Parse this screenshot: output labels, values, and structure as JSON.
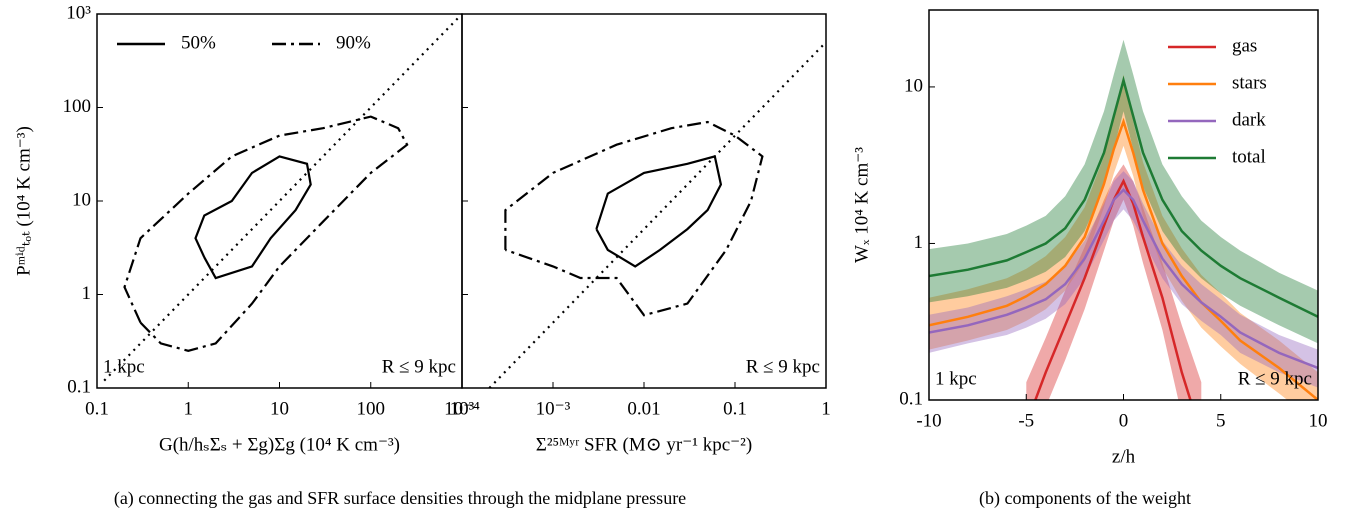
{
  "chart_data": [
    {
      "type": "contour",
      "ylabel": "Pᵐⁱᵈₜₒₜ (10⁴ K cm⁻³)",
      "xlabel": "G(h/hₛΣₛ + Σg)Σg (10⁴ K cm⁻³)",
      "xlim": [
        0.1,
        1000
      ],
      "ylim": [
        0.1,
        1000
      ],
      "xlog": true,
      "ylog": true,
      "xticks": [
        0.1,
        1,
        10,
        100,
        {
          "value": 1000,
          "label": "10³"
        }
      ],
      "yticks": [
        0.1,
        1,
        10,
        100,
        {
          "value": 1000,
          "label": "10³"
        }
      ],
      "legend": "upper left",
      "annotations": [
        "1 kpc",
        "R ≤ 9 kpc"
      ],
      "series": [
        {
          "name": "50%",
          "linestyle": "solid",
          "color": "#000000",
          "x": [
            1.5,
            1.2,
            1.5,
            3,
            5,
            10,
            20,
            22,
            15,
            8,
            5,
            2,
            1.5
          ],
          "values": [
            2.5,
            4,
            7,
            10,
            20,
            30,
            25,
            15,
            8,
            4,
            2,
            1.5,
            2.5
          ]
        },
        {
          "name": "90%",
          "linestyle": "dashdot",
          "color": "#000000",
          "x": [
            0.3,
            0.2,
            0.3,
            1,
            3,
            10,
            30,
            100,
            200,
            250,
            100,
            30,
            10,
            5,
            2,
            1,
            0.5,
            0.3
          ],
          "values": [
            0.5,
            1.2,
            4,
            12,
            30,
            50,
            60,
            80,
            60,
            40,
            20,
            6,
            2,
            0.8,
            0.3,
            0.25,
            0.3,
            0.5
          ]
        },
        {
          "linestyle": "dotted",
          "color": "#000000",
          "x": [
            0.12,
            1000
          ],
          "values": [
            0.12,
            1000
          ]
        }
      ]
    },
    {
      "type": "contour",
      "xlabel": "Σ²⁵ᴹʸʳ SFR (M⊙ yr⁻¹ kpc⁻²)",
      "xlim": [
        0.0001,
        1
      ],
      "ylim": [
        0.1,
        1000
      ],
      "xlog": true,
      "ylog": true,
      "xticks": [
        {
          "value": 0.0001,
          "label": "10⁻⁴"
        },
        {
          "value": 0.001,
          "label": "10⁻³"
        },
        0.01,
        0.1,
        1
      ],
      "yticks": [
        0.1,
        1,
        10,
        100,
        1000
      ],
      "ytick_labels": false,
      "annotations": [
        "R ≤ 9 kpc"
      ],
      "series": [
        {
          "name": "50%",
          "linestyle": "solid",
          "color": "#000000",
          "x": [
            0.003,
            0.004,
            0.01,
            0.03,
            0.06,
            0.07,
            0.05,
            0.03,
            0.015,
            0.008,
            0.004,
            0.003
          ],
          "values": [
            5,
            12,
            20,
            25,
            30,
            15,
            8,
            5,
            3,
            2,
            3,
            5
          ]
        },
        {
          "name": "90%",
          "linestyle": "dashdot",
          "color": "#000000",
          "x": [
            0.0003,
            0.0003,
            0.001,
            0.005,
            0.02,
            0.05,
            0.1,
            0.2,
            0.15,
            0.08,
            0.03,
            0.01,
            0.005,
            0.002,
            0.001,
            0.0003
          ],
          "values": [
            3,
            8,
            20,
            40,
            60,
            70,
            50,
            30,
            10,
            3,
            0.8,
            0.6,
            1.5,
            1.5,
            2,
            3
          ]
        },
        {
          "linestyle": "dotted",
          "color": "#000000",
          "x": [
            0.0002,
            1
          ],
          "values": [
            0.1,
            500
          ]
        }
      ]
    },
    {
      "type": "line",
      "ylabel": "Wₓ 10⁴ K cm⁻³",
      "xlabel": "z/h",
      "xlim": [
        -10,
        10
      ],
      "ylim": [
        0.1,
        31
      ],
      "ylog": true,
      "xticks": [
        -10,
        -5,
        0,
        5,
        10
      ],
      "yticks": [
        0.1,
        1,
        10
      ],
      "legend": "upper right",
      "annotations": [
        "1 kpc",
        "R ≤ 9 kpc"
      ],
      "x": [
        -10,
        -8,
        -6,
        -5,
        -4,
        -3,
        -2,
        -1,
        -0.5,
        0,
        0.5,
        1,
        2,
        3,
        4,
        5,
        6,
        8,
        10
      ],
      "series": [
        {
          "name": "gas",
          "color": "#d62728",
          "values": [
            null,
            null,
            null,
            0.07,
            0.15,
            0.3,
            0.6,
            1.3,
            1.9,
            2.5,
            1.8,
            1.1,
            0.45,
            0.15,
            0.06,
            null,
            null,
            null,
            null
          ],
          "upper": [
            null,
            null,
            null,
            0.13,
            0.25,
            0.5,
            0.95,
            1.9,
            2.6,
            3.2,
            2.5,
            1.7,
            0.75,
            0.3,
            0.13,
            null,
            null,
            null,
            null
          ],
          "lower": [
            null,
            null,
            null,
            0.04,
            0.09,
            0.18,
            0.38,
            0.9,
            1.4,
            1.9,
            1.3,
            0.75,
            0.28,
            0.08,
            0.03,
            null,
            null,
            null,
            null
          ]
        },
        {
          "name": "stars",
          "color": "#ff7f0e",
          "values": [
            0.3,
            0.34,
            0.4,
            0.46,
            0.55,
            0.72,
            1.1,
            2.4,
            4,
            6,
            3.8,
            2.2,
            1.0,
            0.62,
            0.42,
            0.32,
            0.24,
            0.16,
            0.1
          ],
          "upper": [
            0.45,
            0.51,
            0.6,
            0.69,
            0.83,
            1.1,
            1.7,
            3.6,
            6.5,
            12,
            6,
            3.3,
            1.5,
            0.93,
            0.63,
            0.48,
            0.36,
            0.24,
            0.15
          ],
          "lower": [
            0.21,
            0.24,
            0.28,
            0.32,
            0.38,
            0.5,
            0.77,
            1.7,
            2.8,
            4.2,
            2.7,
            1.5,
            0.7,
            0.43,
            0.29,
            0.22,
            0.17,
            0.11,
            0.07
          ]
        },
        {
          "name": "dark",
          "color": "#9467bd",
          "values": [
            0.27,
            0.3,
            0.35,
            0.39,
            0.44,
            0.55,
            0.8,
            1.4,
            1.9,
            2.2,
            1.9,
            1.4,
            0.8,
            0.55,
            0.42,
            0.34,
            0.27,
            0.2,
            0.16
          ],
          "upper": [
            0.35,
            0.39,
            0.46,
            0.51,
            0.57,
            0.72,
            1.04,
            1.8,
            2.5,
            2.9,
            2.5,
            1.8,
            1.04,
            0.72,
            0.55,
            0.44,
            0.35,
            0.26,
            0.21
          ],
          "lower": [
            0.2,
            0.23,
            0.26,
            0.29,
            0.33,
            0.41,
            0.6,
            1.05,
            1.4,
            1.65,
            1.4,
            1.05,
            0.6,
            0.41,
            0.32,
            0.26,
            0.2,
            0.15,
            0.12
          ]
        },
        {
          "name": "total",
          "color": "#1e7b34",
          "values": [
            0.62,
            0.68,
            0.78,
            0.88,
            1.0,
            1.25,
            1.9,
            3.8,
            6.5,
            11,
            6.5,
            3.8,
            1.9,
            1.2,
            0.9,
            0.72,
            0.6,
            0.45,
            0.34
          ],
          "upper": [
            0.92,
            1.0,
            1.15,
            1.3,
            1.5,
            2.0,
            3.2,
            7,
            12,
            20,
            12,
            7,
            3.2,
            2.0,
            1.4,
            1.1,
            0.9,
            0.65,
            0.5
          ],
          "lower": [
            0.42,
            0.46,
            0.52,
            0.58,
            0.66,
            0.82,
            1.2,
            2.3,
            4,
            7,
            4,
            2.3,
            1.2,
            0.8,
            0.6,
            0.48,
            0.4,
            0.3,
            0.23
          ]
        }
      ]
    }
  ],
  "captions": [
    "(a) connecting the gas and SFR surface densities through the midplane pressure",
    "(b) components of the weight"
  ]
}
